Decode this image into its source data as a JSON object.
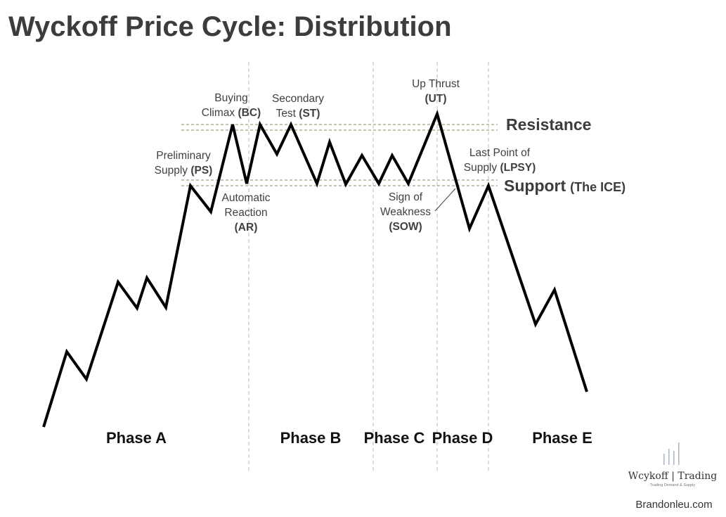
{
  "title": "Wyckoff Price Cycle: Distribution",
  "levels": {
    "resistance": "Resistance",
    "support": "Support",
    "support_sub": "(The ICE)"
  },
  "events": [
    {
      "key": "ps",
      "line1": "Preliminary",
      "line2_text": "Supply ",
      "line2_bold": "(PS)"
    },
    {
      "key": "bc",
      "line1": "Buying",
      "line2_text": "Climax ",
      "line2_bold": "(BC)"
    },
    {
      "key": "st",
      "line1": "Secondary",
      "line2_text": "Test ",
      "line2_bold": "(ST)"
    },
    {
      "key": "ar",
      "line1": "Automatic",
      "line2": "Reaction",
      "line3_bold": "(AR)"
    },
    {
      "key": "ut",
      "line1": "Up Thrust",
      "line2_bold": "(UT)"
    },
    {
      "key": "lpsy",
      "line1": "Last Point of",
      "line2_text": "Supply ",
      "line2_bold": "(LPSY)"
    },
    {
      "key": "sow",
      "line1": "Sign of",
      "line2": "Weakness",
      "line3_bold": "(SOW)"
    }
  ],
  "phases": [
    "Phase A",
    "Phase B",
    "Phase C",
    "Phase D",
    "Phase E"
  ],
  "brand": {
    "name": "Wcykoff | Trading",
    "tagline": "Trading Demand & Supply",
    "website": "Brandonleu.com"
  },
  "colors": {
    "price_line": "#000000",
    "level_line": "#8a8a60",
    "phase_divider": "#b8b8b8",
    "text": "#3c3c3c"
  }
}
